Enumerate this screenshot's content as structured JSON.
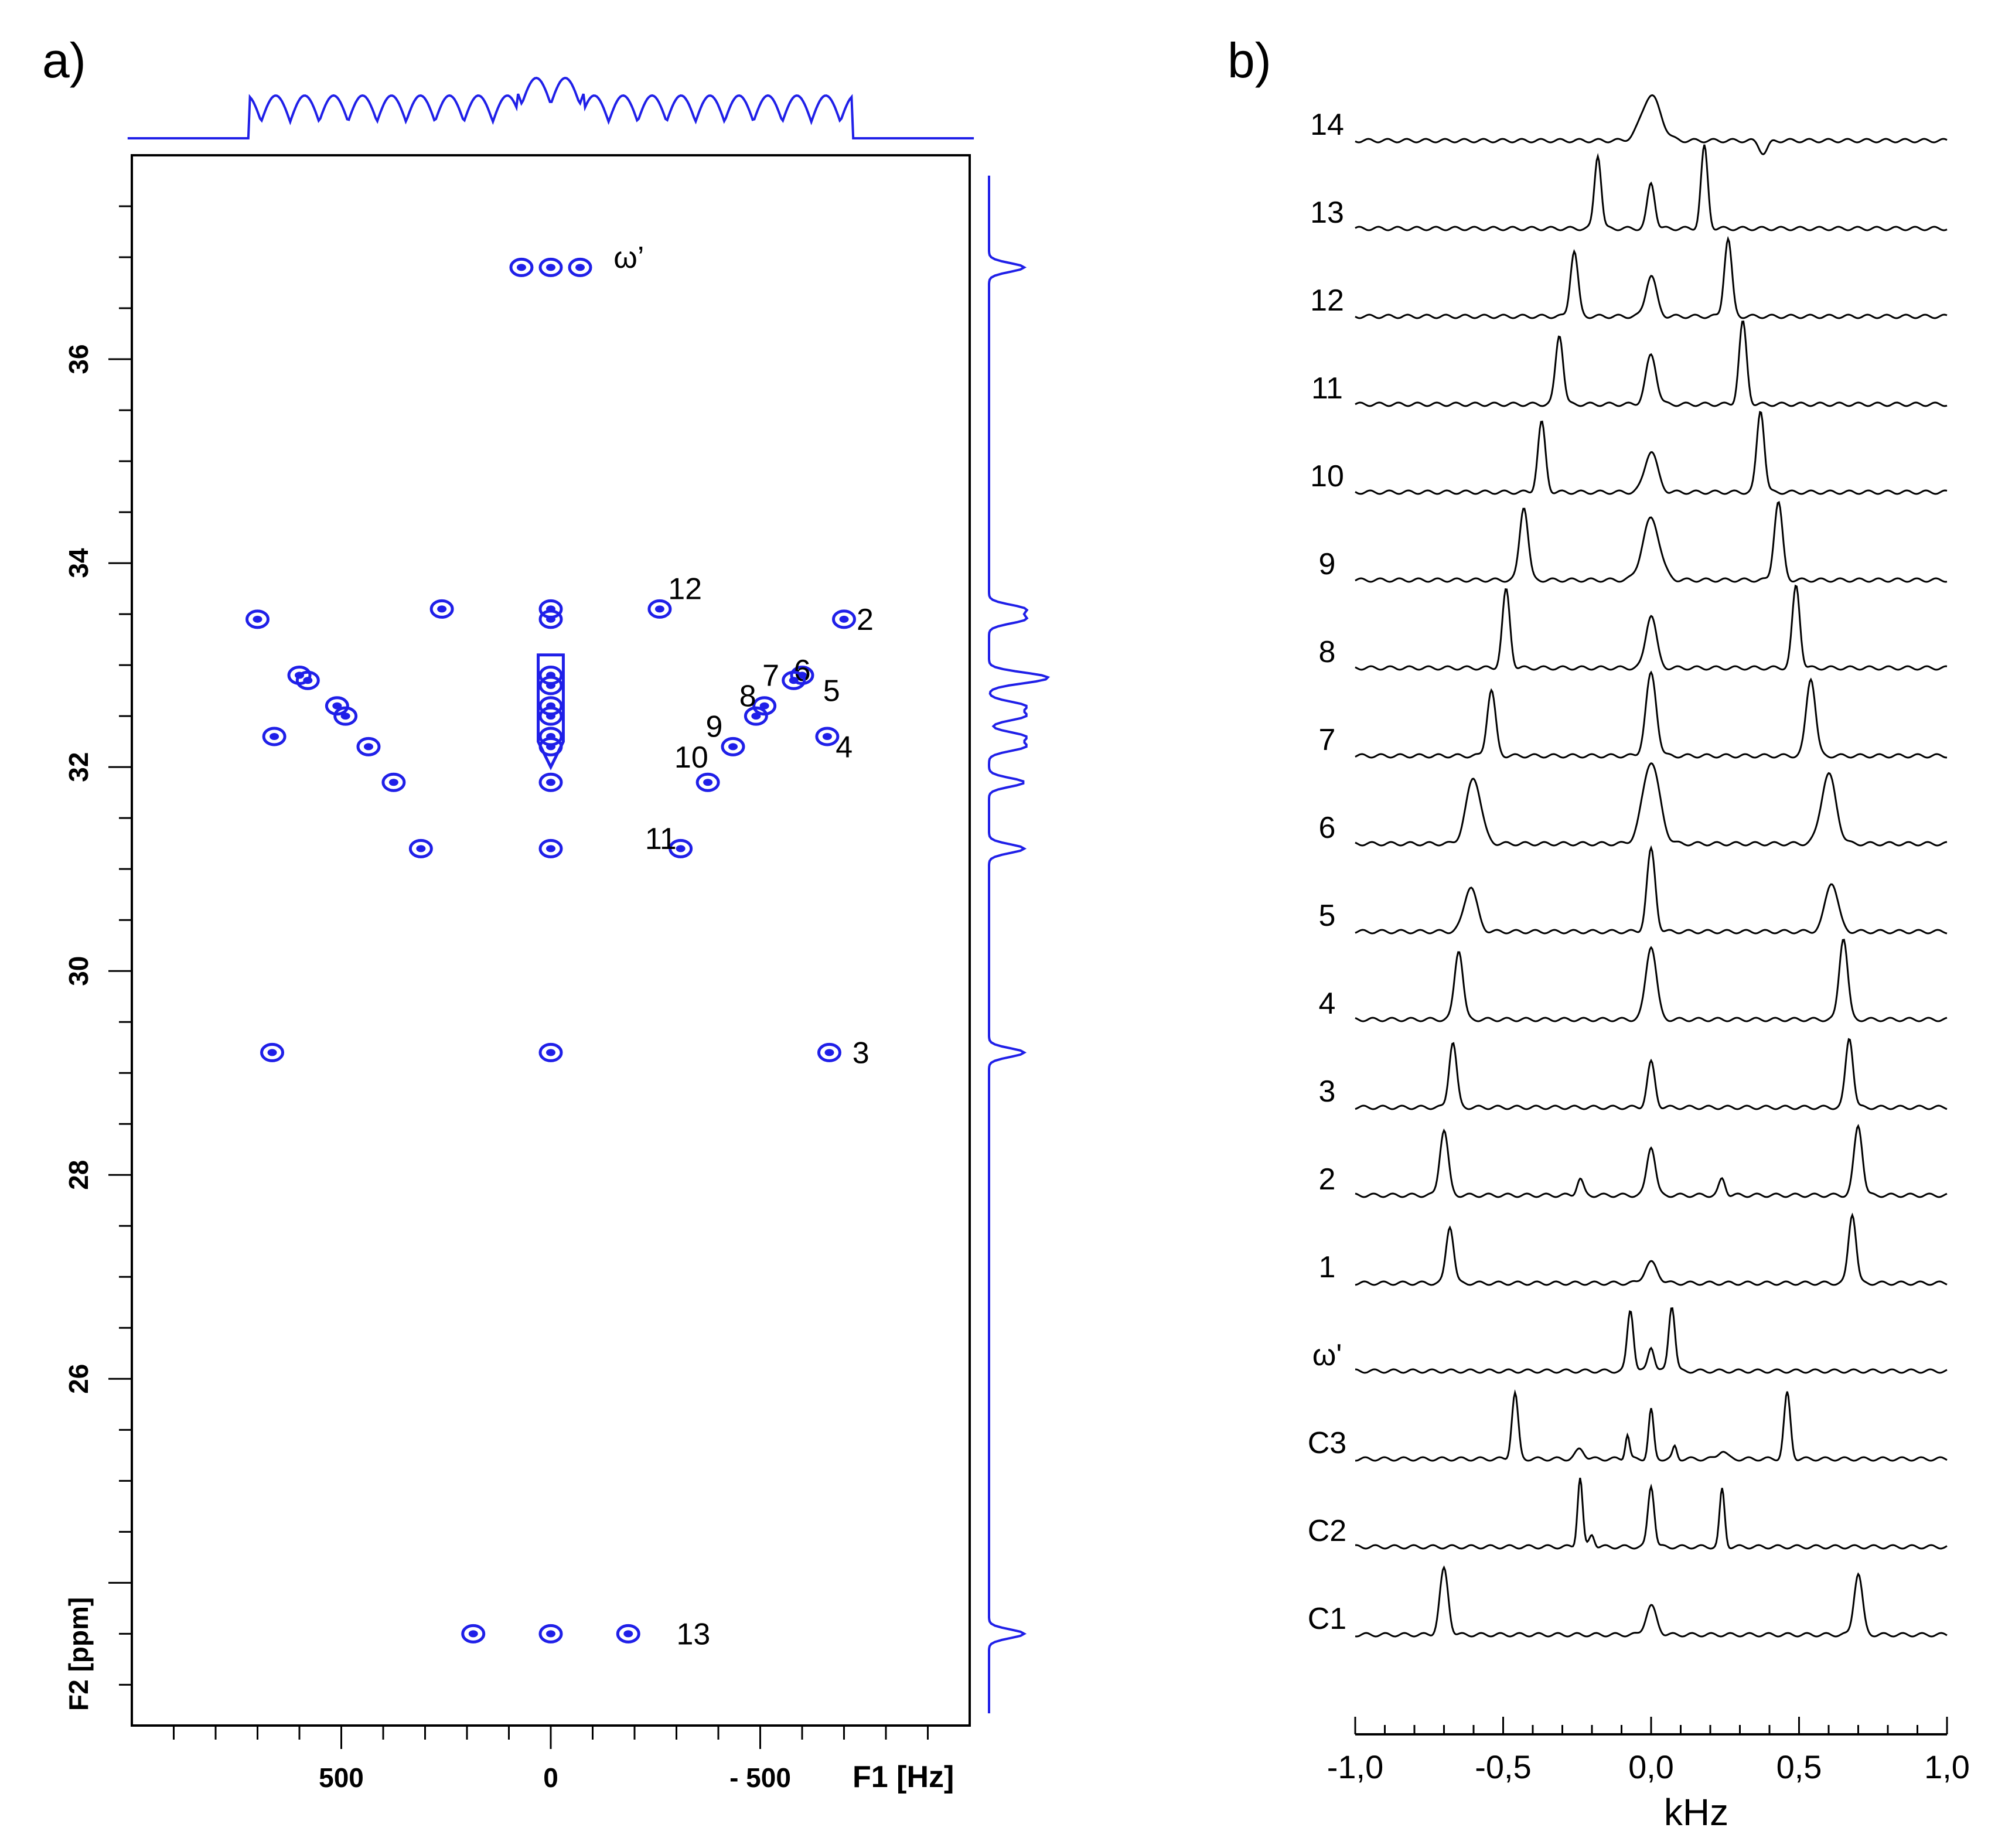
{
  "colors": {
    "contour": "#1f1fe8",
    "spectra": "#000000",
    "frame": "#000000"
  },
  "chart_data": [
    {
      "type": "scatter",
      "panel_label": "a)",
      "xlabel": "F1 [Hz]",
      "ylabel": "F2 [ppm]",
      "xlim": [
        1000,
        -1000
      ],
      "ylim": [
        22.6,
        38.0
      ],
      "xticks": [
        500,
        0,
        -500
      ],
      "xtick_labels": [
        "500",
        "0",
        "- 500"
      ],
      "yticks": [
        36,
        34,
        32,
        30,
        28,
        26
      ],
      "ytick_labels": [
        "36",
        "34",
        "32",
        "30",
        "28",
        "26"
      ],
      "peak_groups": [
        {
          "label": "ω’",
          "label_x": -150,
          "label_y": 37.0,
          "points": [
            {
              "x": 70,
              "y": 36.9
            },
            {
              "x": 0,
              "y": 36.9
            },
            {
              "x": -70,
              "y": 36.9
            }
          ]
        },
        {
          "label": "12",
          "label_x": -280,
          "label_y": 33.75,
          "points": [
            {
              "x": 260,
              "y": 33.55
            },
            {
              "x": 0,
              "y": 33.55
            },
            {
              "x": -260,
              "y": 33.55
            }
          ]
        },
        {
          "label": "2",
          "label_x": -730,
          "label_y": 33.45,
          "points": [
            {
              "x": 700,
              "y": 33.45
            },
            {
              "x": 0,
              "y": 33.45
            },
            {
              "x": -700,
              "y": 33.45
            }
          ]
        },
        {
          "label": "6",
          "label_x": -580,
          "label_y": 32.95,
          "points": [
            {
              "x": 600,
              "y": 32.9
            },
            {
              "x": 0,
              "y": 32.9
            },
            {
              "x": -600,
              "y": 32.9
            }
          ]
        },
        {
          "label": "5",
          "label_x": -650,
          "label_y": 32.75,
          "points": [
            {
              "x": 580,
              "y": 32.85
            },
            {
              "x": 0,
              "y": 32.8
            },
            {
              "x": -580,
              "y": 32.85
            }
          ]
        },
        {
          "label": "7",
          "label_x": -505,
          "label_y": 32.9,
          "points": [
            {
              "x": 510,
              "y": 32.6
            },
            {
              "x": 0,
              "y": 32.6
            },
            {
              "x": -510,
              "y": 32.6
            }
          ]
        },
        {
          "label": "8",
          "label_x": -450,
          "label_y": 32.7,
          "points": [
            {
              "x": 490,
              "y": 32.5
            },
            {
              "x": 0,
              "y": 32.5
            },
            {
              "x": -490,
              "y": 32.5
            }
          ]
        },
        {
          "label": "9",
          "label_x": -370,
          "label_y": 32.4,
          "points": [
            {
              "x": 435,
              "y": 32.2
            },
            {
              "x": 0,
              "y": 32.2
            },
            {
              "x": -435,
              "y": 32.2
            }
          ]
        },
        {
          "label": "4",
          "label_x": -680,
          "label_y": 32.2,
          "points": [
            {
              "x": 660,
              "y": 32.3
            },
            {
              "x": 0,
              "y": 32.3
            },
            {
              "x": -660,
              "y": 32.3
            }
          ]
        },
        {
          "label": "10",
          "label_x": -295,
          "label_y": 32.1,
          "points": [
            {
              "x": 375,
              "y": 31.85
            },
            {
              "x": 0,
              "y": 31.85
            },
            {
              "x": -375,
              "y": 31.85
            }
          ]
        },
        {
          "label": "11",
          "label_x": -225,
          "label_y": 31.3,
          "points": [
            {
              "x": 310,
              "y": 31.2
            },
            {
              "x": 0,
              "y": 31.2
            },
            {
              "x": -310,
              "y": 31.2
            }
          ]
        },
        {
          "label": "3",
          "label_x": -720,
          "label_y": 29.2,
          "points": [
            {
              "x": 665,
              "y": 29.2
            },
            {
              "x": 0,
              "y": 29.2
            },
            {
              "x": -665,
              "y": 29.2
            }
          ]
        },
        {
          "label": "13",
          "label_x": -300,
          "label_y": 23.5,
          "points": [
            {
              "x": 185,
              "y": 23.5
            },
            {
              "x": 0,
              "y": 23.5
            },
            {
              "x": -185,
              "y": 23.5
            }
          ]
        }
      ]
    },
    {
      "type": "line",
      "panel_label": "b)",
      "xlabel": "kHz",
      "xlim": [
        -1.0,
        1.0
      ],
      "xticks": [
        -1.0,
        -0.5,
        0.0,
        0.5,
        1.0
      ],
      "xtick_labels": [
        "-1,0",
        "-0,5",
        "0,0",
        "0,5",
        "1,0"
      ],
      "series": [
        {
          "name": "14",
          "peaks": [
            {
              "x": 0.0,
              "h": 0.55,
              "w": 0.045
            },
            {
              "x": 0.38,
              "h": -0.15,
              "w": 0.02
            }
          ]
        },
        {
          "name": "13",
          "peaks": [
            {
              "x": -0.18,
              "h": 0.9,
              "w": 0.016
            },
            {
              "x": 0.0,
              "h": 0.55,
              "w": 0.018
            },
            {
              "x": 0.18,
              "h": 1.0,
              "w": 0.016
            }
          ]
        },
        {
          "name": "12",
          "peaks": [
            {
              "x": -0.26,
              "h": 0.8,
              "w": 0.018
            },
            {
              "x": 0.0,
              "h": 0.5,
              "w": 0.025
            },
            {
              "x": 0.26,
              "h": 0.95,
              "w": 0.018
            }
          ]
        },
        {
          "name": "11",
          "peaks": [
            {
              "x": -0.31,
              "h": 0.85,
              "w": 0.018
            },
            {
              "x": 0.0,
              "h": 0.6,
              "w": 0.025
            },
            {
              "x": 0.31,
              "h": 1.0,
              "w": 0.018
            }
          ]
        },
        {
          "name": "10",
          "peaks": [
            {
              "x": -0.37,
              "h": 0.85,
              "w": 0.018
            },
            {
              "x": 0.0,
              "h": 0.5,
              "w": 0.03
            },
            {
              "x": 0.37,
              "h": 1.0,
              "w": 0.018
            }
          ]
        },
        {
          "name": "9",
          "peaks": [
            {
              "x": -0.43,
              "h": 0.9,
              "w": 0.02
            },
            {
              "x": 0.0,
              "h": 0.75,
              "w": 0.04
            },
            {
              "x": 0.43,
              "h": 0.95,
              "w": 0.02
            }
          ]
        },
        {
          "name": "8",
          "peaks": [
            {
              "x": -0.49,
              "h": 0.95,
              "w": 0.018
            },
            {
              "x": 0.0,
              "h": 0.65,
              "w": 0.025
            },
            {
              "x": 0.49,
              "h": 1.0,
              "w": 0.018
            }
          ]
        },
        {
          "name": "7",
          "peaks": [
            {
              "x": -0.54,
              "h": 0.8,
              "w": 0.02
            },
            {
              "x": 0.0,
              "h": 1.0,
              "w": 0.025
            },
            {
              "x": 0.54,
              "h": 0.95,
              "w": 0.022
            }
          ]
        },
        {
          "name": "6",
          "peaks": [
            {
              "x": -0.6,
              "h": 0.8,
              "w": 0.035
            },
            {
              "x": 0.0,
              "h": 1.0,
              "w": 0.04
            },
            {
              "x": 0.6,
              "h": 0.85,
              "w": 0.035
            }
          ]
        },
        {
          "name": "5",
          "peaks": [
            {
              "x": -0.61,
              "h": 0.55,
              "w": 0.03
            },
            {
              "x": 0.0,
              "h": 1.0,
              "w": 0.02
            },
            {
              "x": 0.61,
              "h": 0.6,
              "w": 0.03
            }
          ]
        },
        {
          "name": "4",
          "peaks": [
            {
              "x": -0.65,
              "h": 0.85,
              "w": 0.02
            },
            {
              "x": 0.0,
              "h": 0.9,
              "w": 0.025
            },
            {
              "x": 0.65,
              "h": 1.0,
              "w": 0.02
            }
          ]
        },
        {
          "name": "3",
          "peaks": [
            {
              "x": -0.67,
              "h": 0.8,
              "w": 0.018
            },
            {
              "x": 0.0,
              "h": 0.55,
              "w": 0.018
            },
            {
              "x": 0.67,
              "h": 0.85,
              "w": 0.018
            }
          ]
        },
        {
          "name": "2",
          "peaks": [
            {
              "x": -0.7,
              "h": 0.8,
              "w": 0.02
            },
            {
              "x": -0.24,
              "h": 0.2,
              "w": 0.015
            },
            {
              "x": 0.0,
              "h": 0.6,
              "w": 0.02
            },
            {
              "x": 0.24,
              "h": 0.2,
              "w": 0.015
            },
            {
              "x": 0.7,
              "h": 0.85,
              "w": 0.02
            }
          ]
        },
        {
          "name": "1",
          "peaks": [
            {
              "x": -0.68,
              "h": 0.7,
              "w": 0.018
            },
            {
              "x": 0.0,
              "h": 0.25,
              "w": 0.03
            },
            {
              "x": 0.68,
              "h": 0.85,
              "w": 0.018
            }
          ]
        },
        {
          "name": "ω'",
          "peaks": [
            {
              "x": -0.07,
              "h": 0.75,
              "w": 0.015
            },
            {
              "x": 0.0,
              "h": 0.3,
              "w": 0.015
            },
            {
              "x": 0.07,
              "h": 0.8,
              "w": 0.015
            }
          ]
        },
        {
          "name": "C3",
          "peaks": [
            {
              "x": -0.46,
              "h": 0.8,
              "w": 0.015
            },
            {
              "x": -0.24,
              "h": 0.12,
              "w": 0.02
            },
            {
              "x": -0.08,
              "h": 0.3,
              "w": 0.01
            },
            {
              "x": 0.0,
              "h": 0.6,
              "w": 0.012
            },
            {
              "x": 0.08,
              "h": 0.15,
              "w": 0.01
            },
            {
              "x": 0.24,
              "h": 0.1,
              "w": 0.02
            },
            {
              "x": 0.46,
              "h": 0.8,
              "w": 0.015
            }
          ]
        },
        {
          "name": "C2",
          "peaks": [
            {
              "x": -0.24,
              "h": 0.85,
              "w": 0.012
            },
            {
              "x": -0.2,
              "h": 0.15,
              "w": 0.012
            },
            {
              "x": 0.0,
              "h": 0.75,
              "w": 0.015
            },
            {
              "x": 0.24,
              "h": 0.7,
              "w": 0.012
            }
          ]
        },
        {
          "name": "C1",
          "peaks": [
            {
              "x": -0.7,
              "h": 0.8,
              "w": 0.02
            },
            {
              "x": 0.0,
              "h": 0.35,
              "w": 0.025
            },
            {
              "x": 0.7,
              "h": 0.75,
              "w": 0.02
            }
          ]
        }
      ]
    }
  ]
}
